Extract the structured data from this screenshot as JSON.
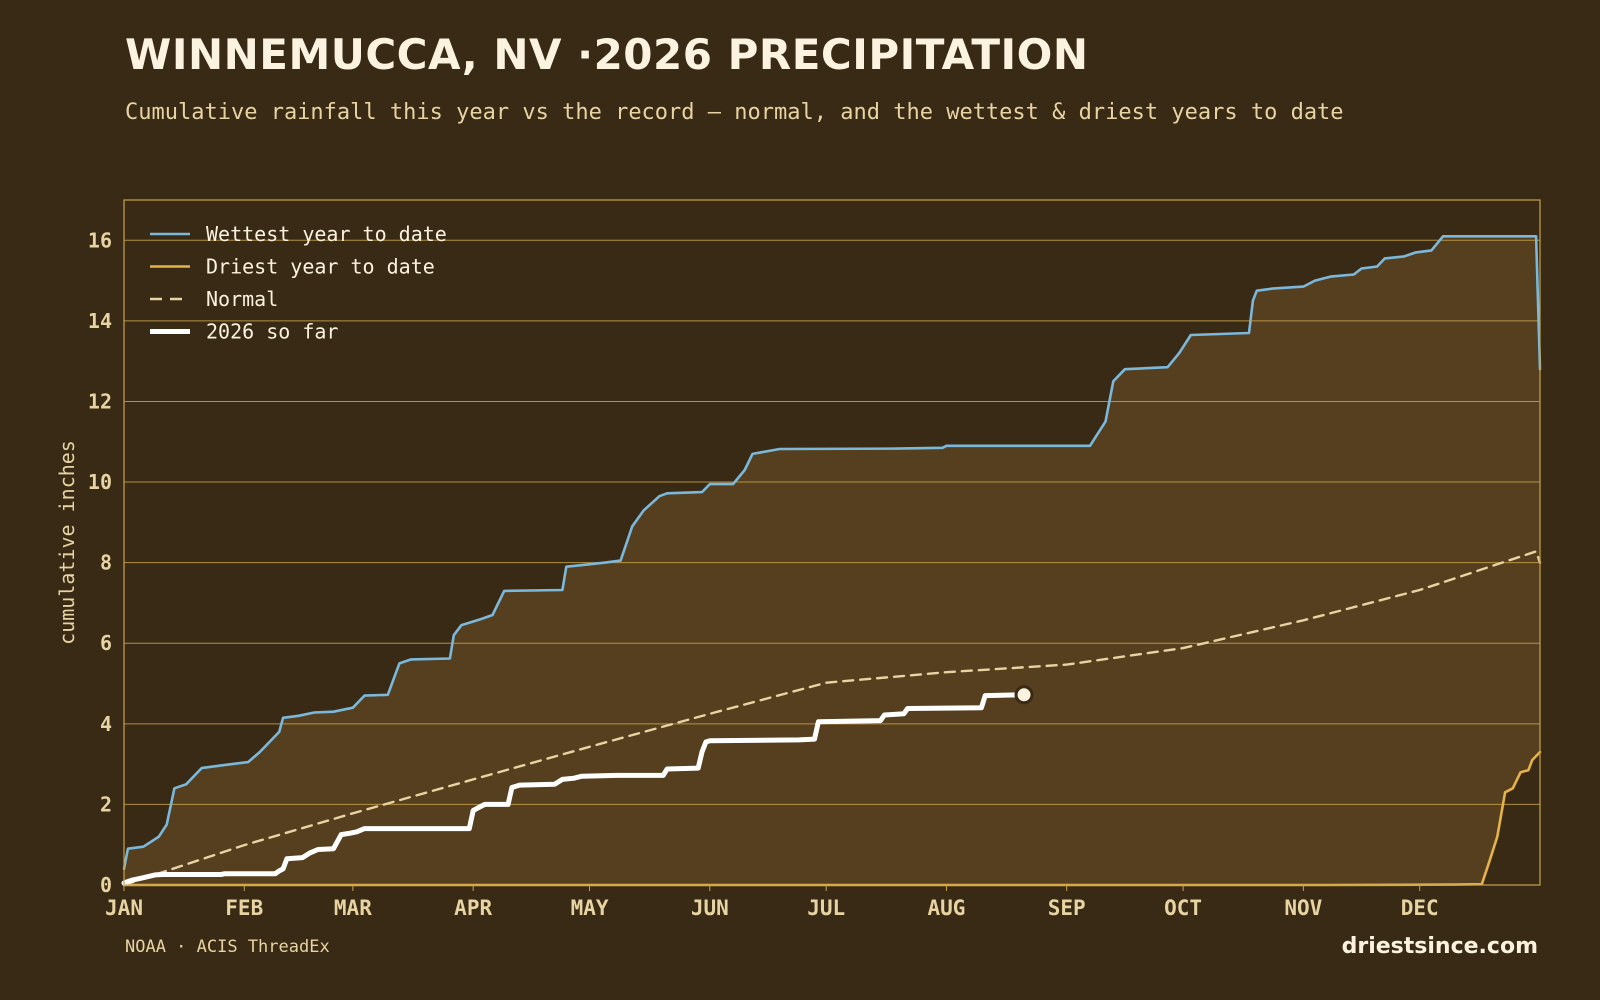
{
  "header": {
    "title": "WINNEMUCCA, NV ·2026 PRECIPITATION",
    "subtitle": "Cumulative rainfall this year vs the record — normal, and the wettest & driest years to date"
  },
  "footer": {
    "source": "NOAA · ACIS ThreadEx",
    "brand": "driestsince.com"
  },
  "colors": {
    "background": "#382a14",
    "band_fill": "#553f1e",
    "grid": "#c9a24c",
    "wettest": "#7bb8db",
    "driest": "#e6b24a",
    "normal": "#e8d3a3",
    "current": "#ffffff"
  },
  "chart_data": {
    "type": "line",
    "title": "WINNEMUCCA, NV ·2026 PRECIPITATION",
    "ylabel": "cumulative inches",
    "xlabel": "",
    "ylim": [
      0,
      17
    ],
    "yticks": [
      0,
      2,
      4,
      6,
      8,
      10,
      12,
      14,
      16
    ],
    "x_months": [
      "JAN",
      "FEB",
      "MAR",
      "APR",
      "MAY",
      "JUN",
      "JUL",
      "AUG",
      "SEP",
      "OCT",
      "NOV",
      "DEC"
    ],
    "month_start_day": [
      1,
      32,
      60,
      91,
      121,
      152,
      182,
      213,
      244,
      274,
      305,
      335
    ],
    "x_range_days": [
      1,
      366
    ],
    "grid": true,
    "legend_position": "top-left",
    "series": [
      {
        "name": "Wettest year to date",
        "color": "#7bb8db",
        "style": "solid",
        "points": [
          [
            1,
            0.4
          ],
          [
            2,
            0.9
          ],
          [
            6,
            0.95
          ],
          [
            10,
            1.2
          ],
          [
            12,
            1.5
          ],
          [
            14,
            2.4
          ],
          [
            17,
            2.5
          ],
          [
            21,
            2.9
          ],
          [
            27,
            2.98
          ],
          [
            33,
            3.05
          ],
          [
            36,
            3.3
          ],
          [
            38,
            3.5
          ],
          [
            41,
            3.8
          ],
          [
            42,
            4.15
          ],
          [
            46,
            4.2
          ],
          [
            50,
            4.28
          ],
          [
            55,
            4.3
          ],
          [
            60,
            4.4
          ],
          [
            63,
            4.7
          ],
          [
            69,
            4.72
          ],
          [
            72,
            5.5
          ],
          [
            75,
            5.6
          ],
          [
            85,
            5.62
          ],
          [
            86,
            6.2
          ],
          [
            88,
            6.45
          ],
          [
            93,
            6.6
          ],
          [
            96,
            6.7
          ],
          [
            99,
            7.3
          ],
          [
            114,
            7.32
          ],
          [
            115,
            7.9
          ],
          [
            120,
            7.95
          ],
          [
            125,
            8.0
          ],
          [
            129,
            8.05
          ],
          [
            132,
            8.9
          ],
          [
            135,
            9.3
          ],
          [
            139,
            9.65
          ],
          [
            141,
            9.72
          ],
          [
            150,
            9.75
          ],
          [
            152,
            9.95
          ],
          [
            158,
            9.95
          ],
          [
            161,
            10.3
          ],
          [
            163,
            10.7
          ],
          [
            170,
            10.82
          ],
          [
            200,
            10.83
          ],
          [
            212,
            10.85
          ],
          [
            213,
            10.9
          ],
          [
            250,
            10.9
          ],
          [
            252,
            11.2
          ],
          [
            254,
            11.5
          ],
          [
            256,
            12.5
          ],
          [
            259,
            12.8
          ],
          [
            270,
            12.85
          ],
          [
            273,
            13.2
          ],
          [
            276,
            13.65
          ],
          [
            291,
            13.7
          ],
          [
            292,
            14.5
          ],
          [
            293,
            14.75
          ],
          [
            297,
            14.8
          ],
          [
            305,
            14.85
          ],
          [
            308,
            15.0
          ],
          [
            312,
            15.1
          ],
          [
            318,
            15.15
          ],
          [
            320,
            15.3
          ],
          [
            324,
            15.35
          ],
          [
            326,
            15.55
          ],
          [
            331,
            15.6
          ],
          [
            334,
            15.7
          ],
          [
            338,
            15.75
          ],
          [
            341,
            16.1
          ],
          [
            365,
            16.1
          ],
          [
            366,
            12.8
          ]
        ]
      },
      {
        "name": "Driest year to date",
        "color": "#e6b24a",
        "style": "solid",
        "points": [
          [
            1,
            0
          ],
          [
            311,
            0
          ],
          [
            344,
            0.01
          ],
          [
            351,
            0.02
          ],
          [
            353,
            0.6
          ],
          [
            355,
            1.2
          ],
          [
            357,
            2.3
          ],
          [
            359,
            2.4
          ],
          [
            361,
            2.8
          ],
          [
            363,
            2.85
          ],
          [
            364,
            3.1
          ],
          [
            366,
            3.3
          ]
        ]
      },
      {
        "name": "Normal",
        "color": "#e8d3a3",
        "style": "dashed",
        "points": [
          [
            1,
            0
          ],
          [
            32,
            0.99
          ],
          [
            60,
            1.78
          ],
          [
            91,
            2.62
          ],
          [
            121,
            3.43
          ],
          [
            152,
            4.25
          ],
          [
            182,
            5.02
          ],
          [
            213,
            5.28
          ],
          [
            244,
            5.47
          ],
          [
            274,
            5.88
          ],
          [
            305,
            6.57
          ],
          [
            335,
            7.32
          ],
          [
            365,
            8.28
          ],
          [
            366,
            8.0
          ]
        ]
      },
      {
        "name": "2026 so far",
        "color": "#ffffff",
        "style": "solid",
        "points": [
          [
            1,
            0.05
          ],
          [
            3,
            0.12
          ],
          [
            6,
            0.18
          ],
          [
            9,
            0.25
          ],
          [
            11,
            0.26
          ],
          [
            26,
            0.26
          ],
          [
            27,
            0.28
          ],
          [
            40,
            0.28
          ],
          [
            41,
            0.35
          ],
          [
            42,
            0.4
          ],
          [
            43,
            0.65
          ],
          [
            47,
            0.68
          ],
          [
            49,
            0.8
          ],
          [
            51,
            0.88
          ],
          [
            55,
            0.9
          ],
          [
            57,
            1.25
          ],
          [
            59,
            1.28
          ],
          [
            61,
            1.32
          ],
          [
            63,
            1.4
          ],
          [
            90,
            1.4
          ],
          [
            91,
            1.85
          ],
          [
            92,
            1.9
          ],
          [
            94,
            2.0
          ],
          [
            100,
            2.0
          ],
          [
            101,
            2.42
          ],
          [
            103,
            2.48
          ],
          [
            112,
            2.5
          ],
          [
            114,
            2.62
          ],
          [
            117,
            2.65
          ],
          [
            119,
            2.7
          ],
          [
            128,
            2.72
          ],
          [
            140,
            2.72
          ],
          [
            141,
            2.88
          ],
          [
            149,
            2.9
          ],
          [
            150,
            3.3
          ],
          [
            151,
            3.55
          ],
          [
            152,
            3.58
          ],
          [
            175,
            3.6
          ],
          [
            179,
            3.62
          ],
          [
            180,
            4.05
          ],
          [
            196,
            4.08
          ],
          [
            197,
            4.22
          ],
          [
            202,
            4.25
          ],
          [
            203,
            4.38
          ],
          [
            222,
            4.4
          ],
          [
            223,
            4.7
          ],
          [
            232,
            4.72
          ]
        ],
        "end_marker": [
          233,
          4.72
        ]
      }
    ]
  }
}
